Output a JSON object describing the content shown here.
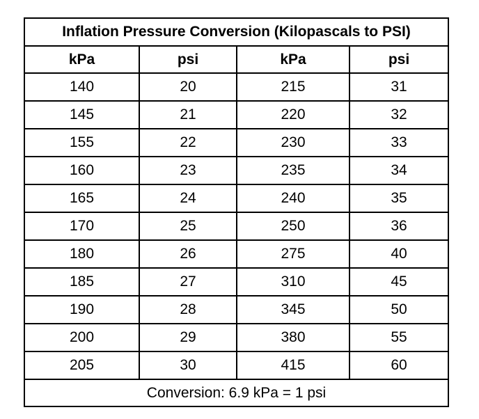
{
  "table": {
    "title": "Inflation Pressure Conversion (Kilopascals to PSI)",
    "headers": [
      "kPa",
      "psi",
      "kPa",
      "psi"
    ],
    "rows": [
      [
        "140",
        "20",
        "215",
        "31"
      ],
      [
        "145",
        "21",
        "220",
        "32"
      ],
      [
        "155",
        "22",
        "230",
        "33"
      ],
      [
        "160",
        "23",
        "235",
        "34"
      ],
      [
        "165",
        "24",
        "240",
        "35"
      ],
      [
        "170",
        "25",
        "250",
        "36"
      ],
      [
        "180",
        "26",
        "275",
        "40"
      ],
      [
        "185",
        "27",
        "310",
        "45"
      ],
      [
        "190",
        "28",
        "345",
        "50"
      ],
      [
        "200",
        "29",
        "380",
        "55"
      ],
      [
        "205",
        "30",
        "415",
        "60"
      ]
    ],
    "footer": "Conversion: 6.9 kPa = 1 psi"
  }
}
